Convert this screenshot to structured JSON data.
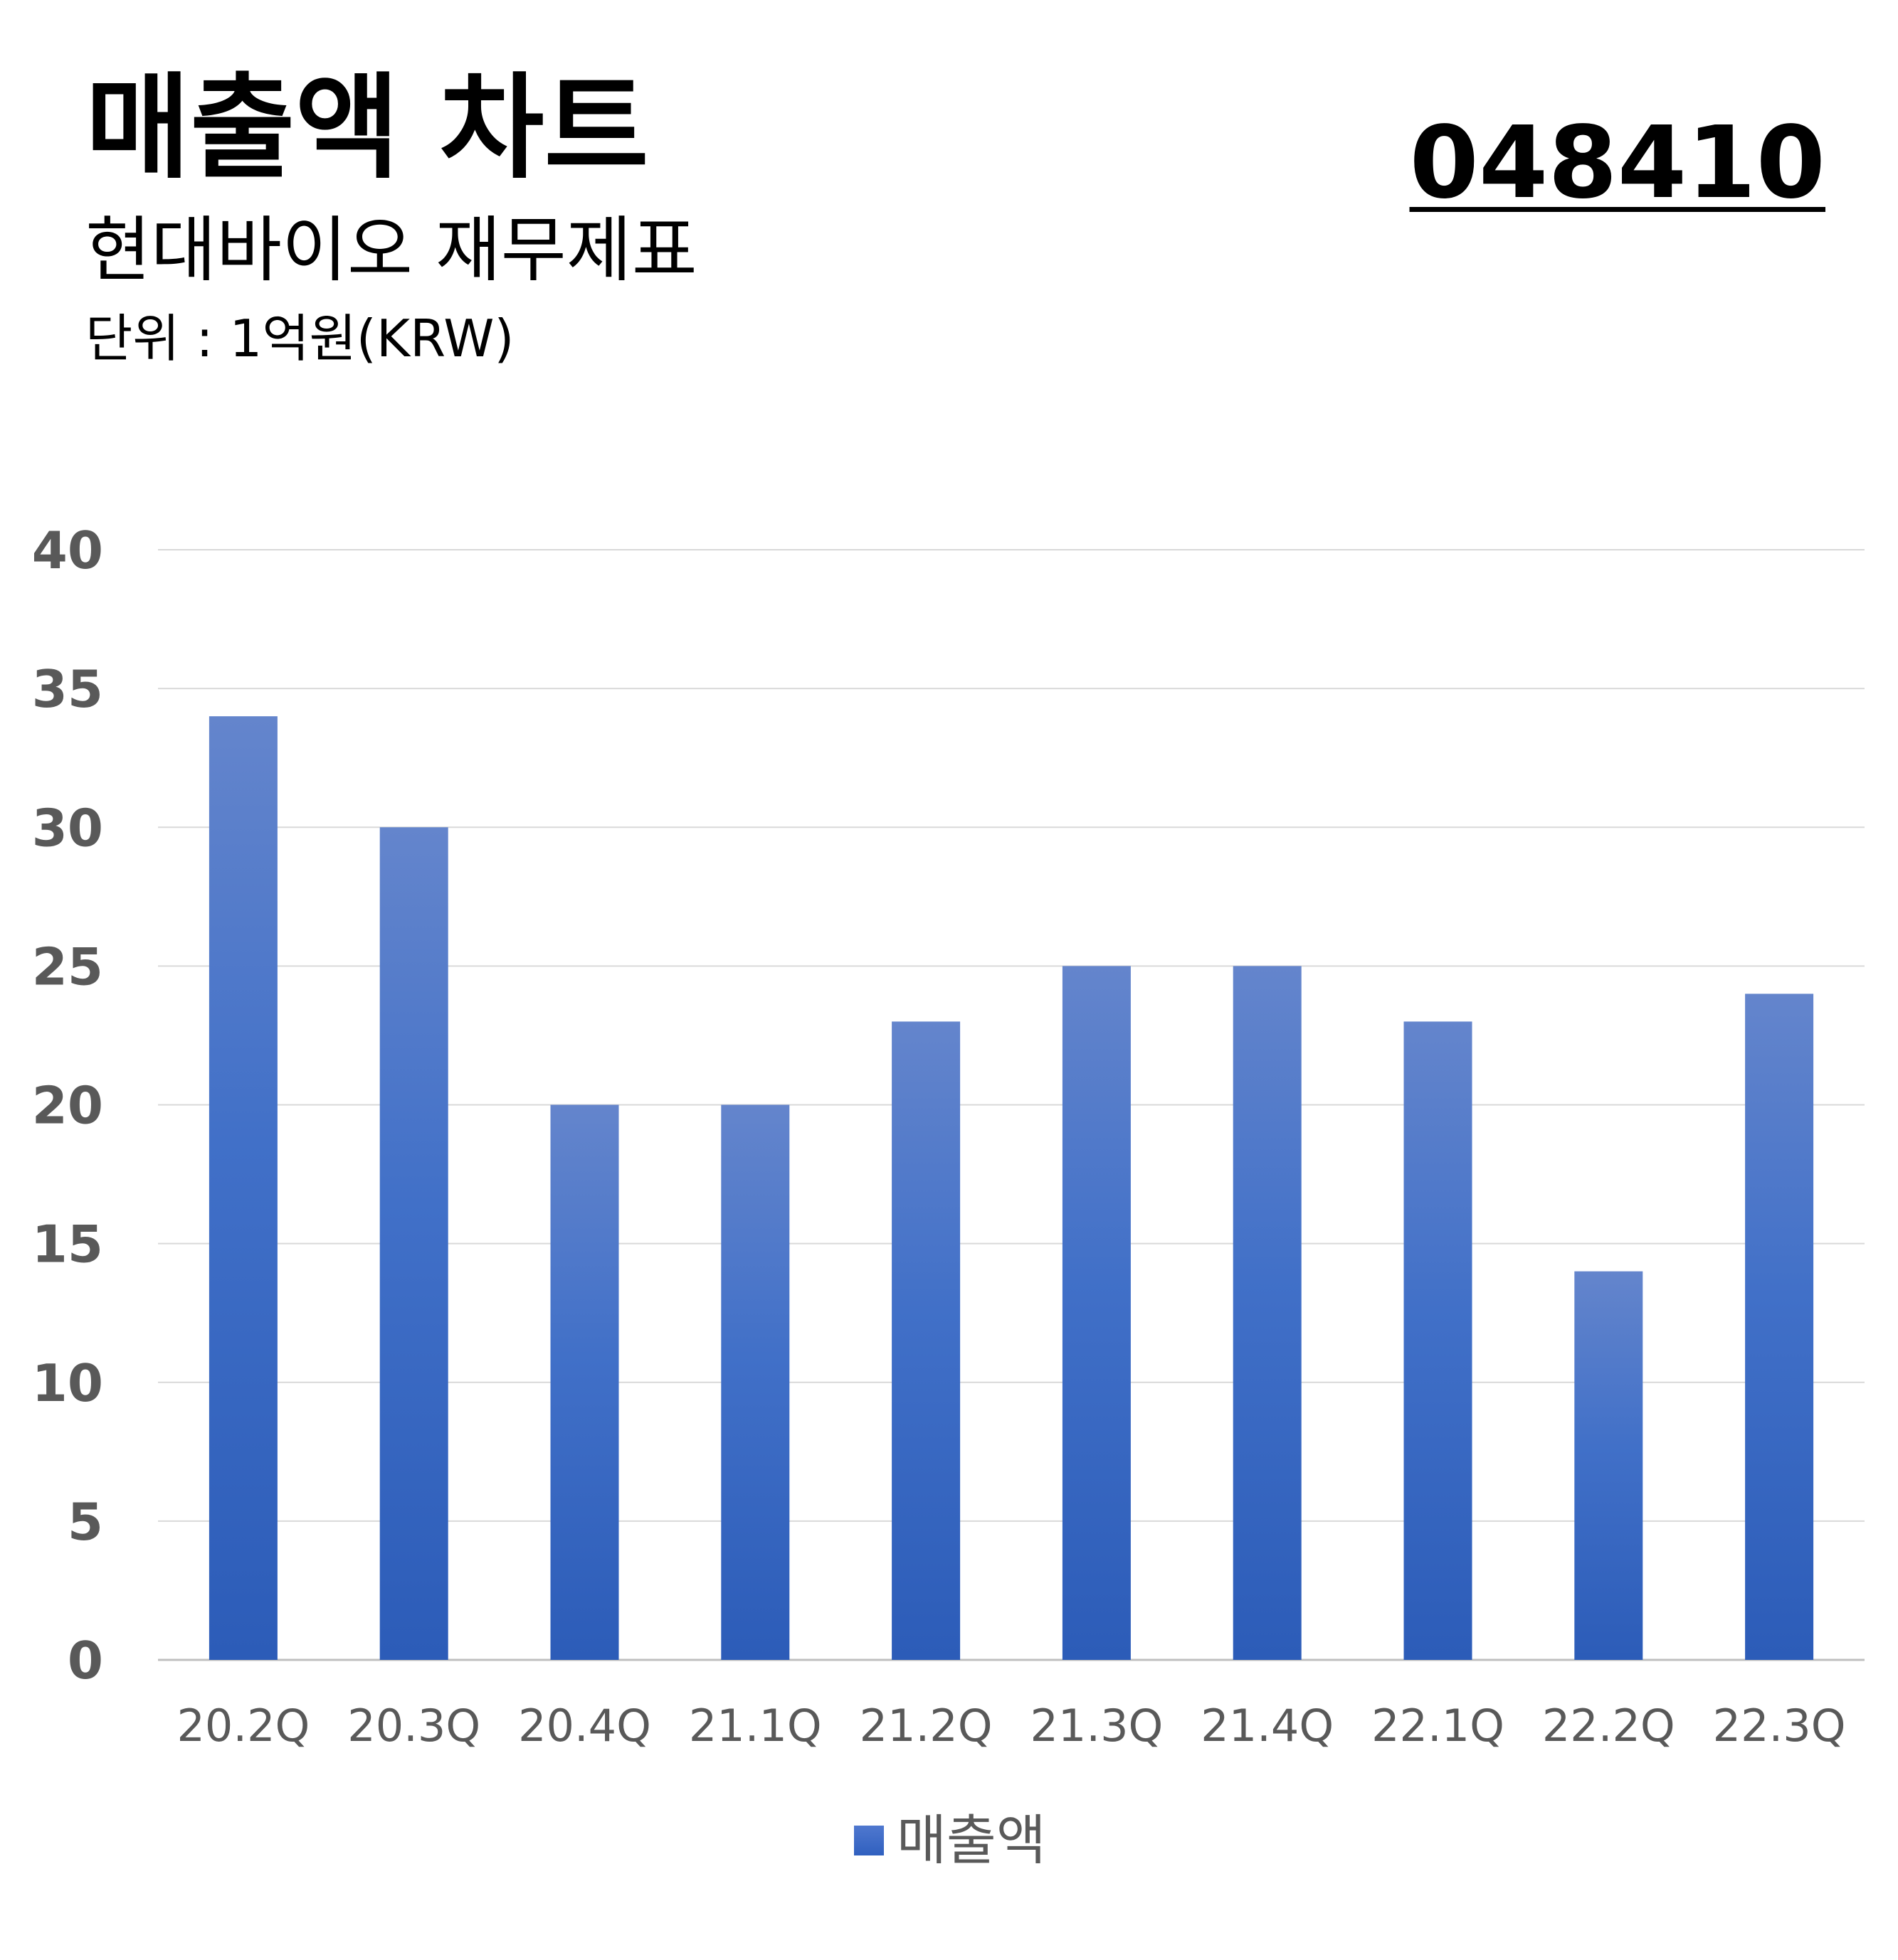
{
  "header": {
    "title": "매출액 차트",
    "subtitle": "현대바이오 재무제표",
    "unit": "단위 : 1억원(KRW)",
    "code": "048410"
  },
  "colors": {
    "bar_top": "#6485cc",
    "bar_bottom": "#2c5cb8",
    "grid": "#d9d9d9",
    "tick_text": "#595959"
  },
  "chart_data": {
    "type": "bar",
    "categories": [
      "20.2Q",
      "20.3Q",
      "20.4Q",
      "21.1Q",
      "21.2Q",
      "21.3Q",
      "21.4Q",
      "22.1Q",
      "22.2Q",
      "22.3Q"
    ],
    "series": [
      {
        "name": "매출액",
        "values": [
          34,
          30,
          20,
          20,
          23,
          25,
          25,
          23,
          14,
          24
        ]
      }
    ],
    "ylim": [
      0,
      40
    ],
    "yticks": [
      0,
      5,
      10,
      15,
      20,
      25,
      30,
      35,
      40
    ],
    "grid": true,
    "legend": "bottom"
  }
}
